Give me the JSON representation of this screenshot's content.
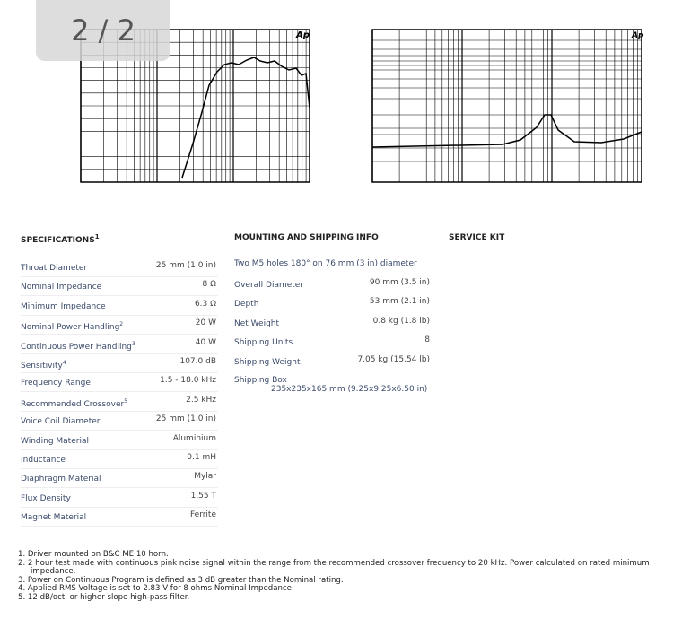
{
  "viewer": {
    "counter": "2 / 2"
  },
  "graphs": {
    "left_logo": "Ap",
    "right_logo": "Ap"
  },
  "specifications": {
    "title": "SPECIFICATIONS",
    "title_note": "1",
    "rows": [
      {
        "label": "Throat Diameter",
        "value": "25 mm (1.0 in)"
      },
      {
        "label": "Nominal Impedance",
        "value": "8 Ω"
      },
      {
        "label": "Minimum Impedance",
        "value": "6.3 Ω"
      },
      {
        "label": "Nominal Power Handling",
        "note": "2",
        "value": "20 W"
      },
      {
        "label": "Continuous Power Handling",
        "note": "3",
        "value": "40 W"
      },
      {
        "label": "Sensitivity",
        "note": "4",
        "value": "107.0 dB"
      },
      {
        "label": "Frequency Range",
        "value": "1.5 - 18.0 kHz"
      },
      {
        "label": "Recommended Crossover",
        "note": "5",
        "value": "2.5 kHz"
      },
      {
        "label": "Voice Coil Diameter",
        "value": "25 mm (1.0 in)"
      },
      {
        "label": "Winding Material",
        "value": "Aluminium"
      },
      {
        "label": "Inductance",
        "value": "0.1 mH"
      },
      {
        "label": "Diaphragm Material",
        "value": "Mylar"
      },
      {
        "label": "Flux Density",
        "value": "1.55 T"
      },
      {
        "label": "Magnet Material",
        "value": "Ferrite"
      }
    ]
  },
  "mounting": {
    "title": "MOUNTING AND SHIPPING INFO",
    "intro": "Two M5 holes 180° on 76 mm (3 in) diameter",
    "rows": [
      {
        "label": "Overall Diameter",
        "value": "90 mm (3.5 in)"
      },
      {
        "label": "Depth",
        "value": "53 mm (2.1 in)"
      },
      {
        "label": "Net Weight",
        "value": "0.8 kg (1.8 lb)"
      },
      {
        "label": "Shipping Units",
        "value": "8"
      },
      {
        "label": "Shipping Weight",
        "value": "7.05 kg (15.54 lb)"
      }
    ],
    "box_label": "Shipping Box",
    "box_value": "235x235x165 mm (9.25x9.25x6.50 in)"
  },
  "service_kit": {
    "title": "SERVICE KIT"
  },
  "footnotes": [
    "1. Driver mounted on B&C ME 10 horn.",
    "2. 2 hour test made with continuous pink noise signal within the range from the recommended crossover frequency to 20 kHz. Power calculated on rated minimum impedance.",
    "3. Power on Continuous Program is defined as 3 dB greater than the Nominal rating.",
    "4. Applied RMS Voltage is set to 2.83 V for 8 ohms Nominal Impedance.",
    "5. 12 dB/oct. or higher slope high-pass filter."
  ]
}
